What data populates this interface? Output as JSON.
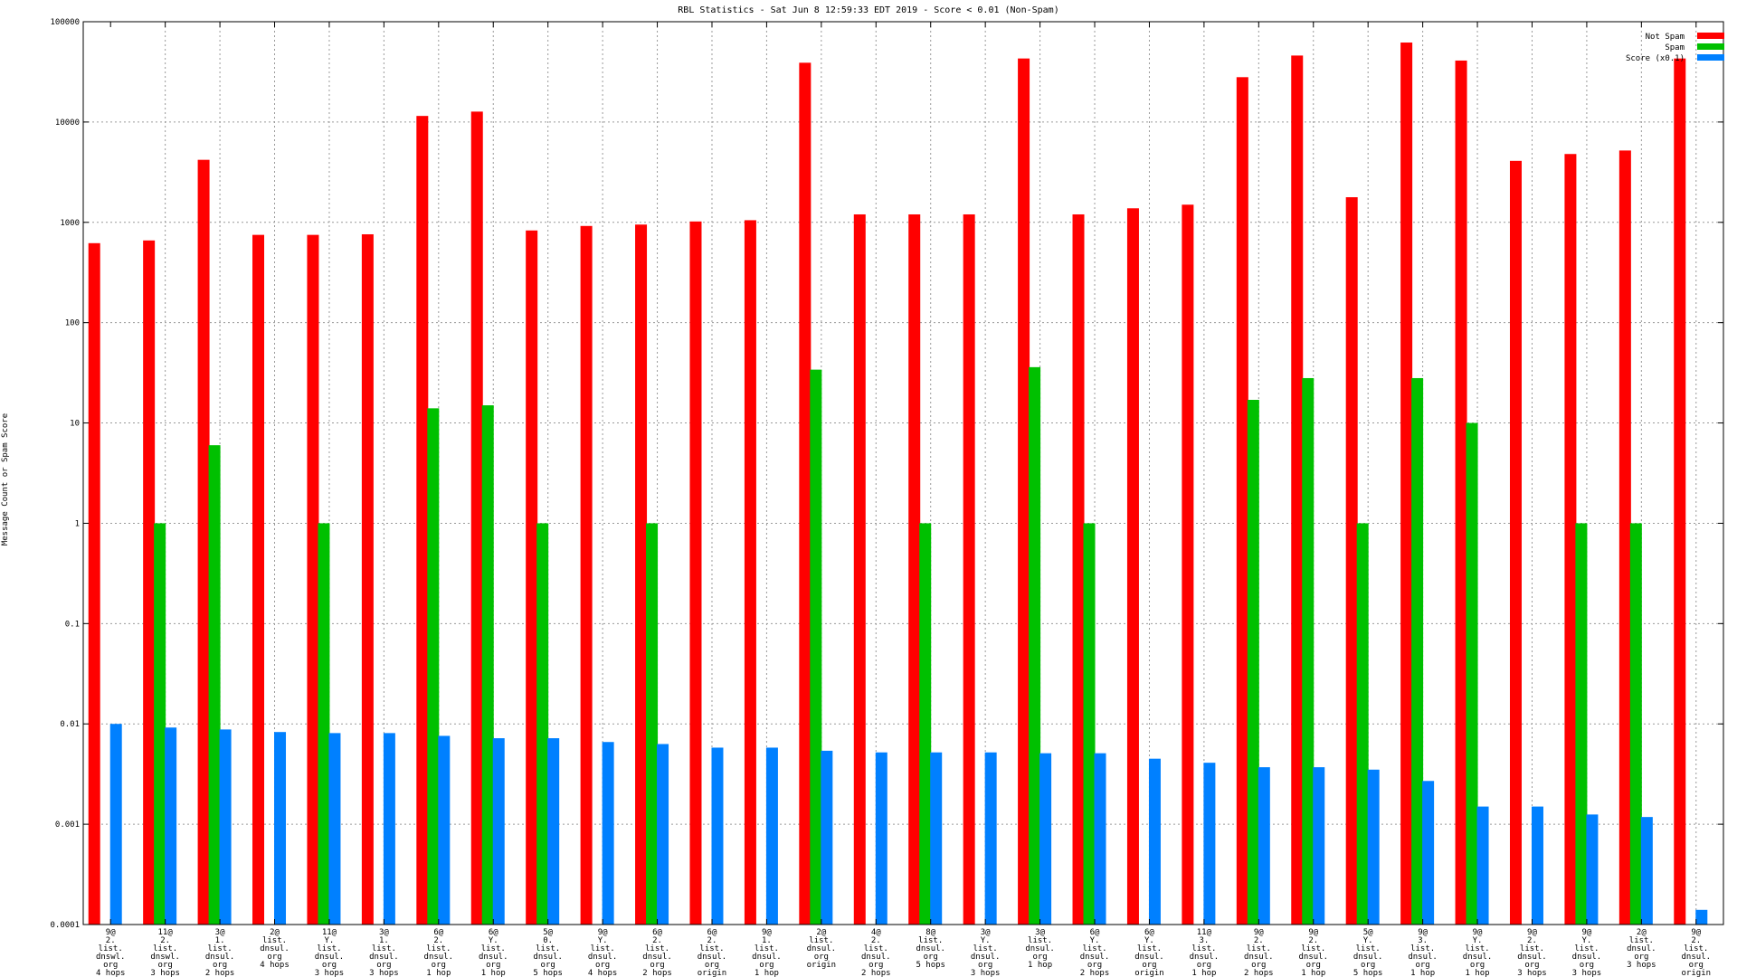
{
  "chart_data": {
    "type": "bar",
    "title": "RBL Statistics - Sat Jun  8 12:59:33 EDT 2019 - Score < 0.01 (Non-Spam)",
    "xlabel": "",
    "ylabel": "Message Count or Spam Score",
    "yscale": "log",
    "ylim": [
      0.0001,
      100000
    ],
    "yticks": [
      "0.0001",
      "0.001",
      "0.01",
      "0.1",
      "1",
      "10",
      "100",
      "1000",
      "10000",
      "100000"
    ],
    "grid": true,
    "legend_position": "top-right",
    "categories": [
      [
        "9@",
        "2.",
        "list.",
        "dnswl.",
        "org",
        "4 hops"
      ],
      [
        "11@",
        "2.",
        "list.",
        "dnswl.",
        "org",
        "3 hops"
      ],
      [
        "3@",
        "1.",
        "list.",
        "dnsul.",
        "org",
        "2 hops"
      ],
      [
        "2@",
        "list.",
        "dnsul.",
        "org",
        "4 hops"
      ],
      [
        "11@",
        "Y.",
        "list.",
        "dnsul.",
        "org",
        "3 hops"
      ],
      [
        "3@",
        "1.",
        "list.",
        "dnsul.",
        "org",
        "3 hops"
      ],
      [
        "6@",
        "2.",
        "list.",
        "dnsul.",
        "org",
        "1 hop"
      ],
      [
        "6@",
        "Y.",
        "list.",
        "dnsul.",
        "org",
        "1 hop"
      ],
      [
        "5@",
        "0.",
        "list.",
        "dnsul.",
        "org",
        "5 hops"
      ],
      [
        "9@",
        "Y.",
        "list.",
        "dnsul.",
        "org",
        "4 hops"
      ],
      [
        "6@",
        "2.",
        "list.",
        "dnsul.",
        "org",
        "2 hops"
      ],
      [
        "6@",
        "2.",
        "list.",
        "dnsul.",
        "org",
        "origin"
      ],
      [
        "9@",
        "1.",
        "list.",
        "dnsul.",
        "org",
        "1 hop"
      ],
      [
        "2@",
        "list.",
        "dnsul.",
        "org",
        "origin"
      ],
      [
        "4@",
        "2.",
        "list.",
        "dnsul.",
        "org",
        "2 hops"
      ],
      [
        "8@",
        "list.",
        "dnsul.",
        "org",
        "5 hops"
      ],
      [
        "3@",
        "Y.",
        "list.",
        "dnsul.",
        "org",
        "3 hops"
      ],
      [
        "3@",
        "list.",
        "dnsul.",
        "org",
        "1 hop"
      ],
      [
        "6@",
        "Y.",
        "list.",
        "dnsul.",
        "org",
        "2 hops"
      ],
      [
        "6@",
        "Y.",
        "list.",
        "dnsul.",
        "org",
        "origin"
      ],
      [
        "11@",
        "3.",
        "list.",
        "dnsul.",
        "org",
        "1 hop"
      ],
      [
        "9@",
        "2.",
        "list.",
        "dnsul.",
        "org",
        "2 hops"
      ],
      [
        "9@",
        "2.",
        "list.",
        "dnsul.",
        "org",
        "1 hop"
      ],
      [
        "5@",
        "Y.",
        "list.",
        "dnsul.",
        "org",
        "5 hops"
      ],
      [
        "9@",
        "3.",
        "list.",
        "dnsul.",
        "org",
        "1 hop"
      ],
      [
        "9@",
        "Y.",
        "list.",
        "dnsul.",
        "org",
        "1 hop"
      ],
      [
        "9@",
        "2.",
        "list.",
        "dnsul.",
        "org",
        "3 hops"
      ],
      [
        "9@",
        "Y.",
        "list.",
        "dnsul.",
        "org",
        "3 hops"
      ],
      [
        "2@",
        "list.",
        "dnsul.",
        "org",
        "3 hops"
      ],
      [
        "9@",
        "2.",
        "list.",
        "dnsul.",
        "org",
        "origin"
      ]
    ],
    "series": [
      {
        "name": "Not Spam",
        "color": "#ff0000",
        "values": [
          620,
          660,
          4200,
          750,
          750,
          760,
          11500,
          12700,
          830,
          920,
          950,
          1020,
          1050,
          39000,
          1200,
          1200,
          1200,
          43000,
          1200,
          1380,
          1500,
          28000,
          46000,
          1780,
          62000,
          41000,
          4100,
          4800,
          5200,
          43000
        ]
      },
      {
        "name": "Spam",
        "color": "#00c000",
        "values": [
          null,
          1,
          6,
          null,
          1,
          null,
          14,
          15,
          1,
          null,
          1,
          null,
          null,
          34,
          null,
          1,
          null,
          36,
          1,
          null,
          null,
          17,
          28,
          1,
          28,
          10,
          null,
          1,
          1,
          null
        ]
      },
      {
        "name": "Score (x0.1)",
        "color": "#0080ff",
        "values": [
          0.01,
          0.0092,
          0.0088,
          0.0083,
          0.0081,
          0.0081,
          0.0076,
          0.0072,
          0.0072,
          0.0066,
          0.0063,
          0.0058,
          0.0058,
          0.0054,
          0.0052,
          0.0052,
          0.0052,
          0.0051,
          0.0051,
          0.0045,
          0.0041,
          0.0037,
          0.0037,
          0.0035,
          0.0027,
          0.0015,
          0.0015,
          0.00125,
          0.00118,
          0.00014
        ]
      }
    ]
  }
}
